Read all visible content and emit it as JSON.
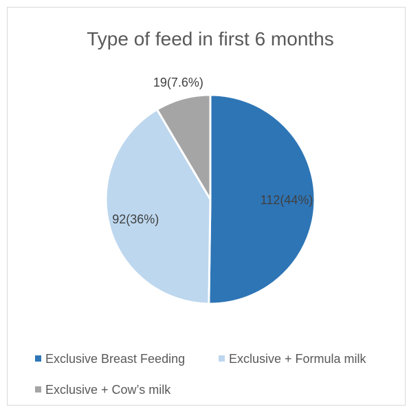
{
  "chart_data": {
    "type": "pie",
    "title": "Type of feed in first 6 months",
    "categories": [
      "Exclusive Breast Feeding",
      "Exclusive + Formula milk",
      "Exclusive + Cow’s milk"
    ],
    "values": [
      112,
      92,
      19
    ],
    "data_labels": [
      "112(44%)",
      "92(36%)",
      "19(7.6%)"
    ],
    "colors": [
      "#2e75b6",
      "#bdd7ee",
      "#a5a5a5"
    ],
    "start_angle_deg": 0,
    "direction": "clockwise",
    "legend": {
      "position": "bottom",
      "entries": [
        "Exclusive Breast Feeding",
        "Exclusive + Formula milk",
        "Exclusive + Cow’s milk"
      ]
    }
  }
}
